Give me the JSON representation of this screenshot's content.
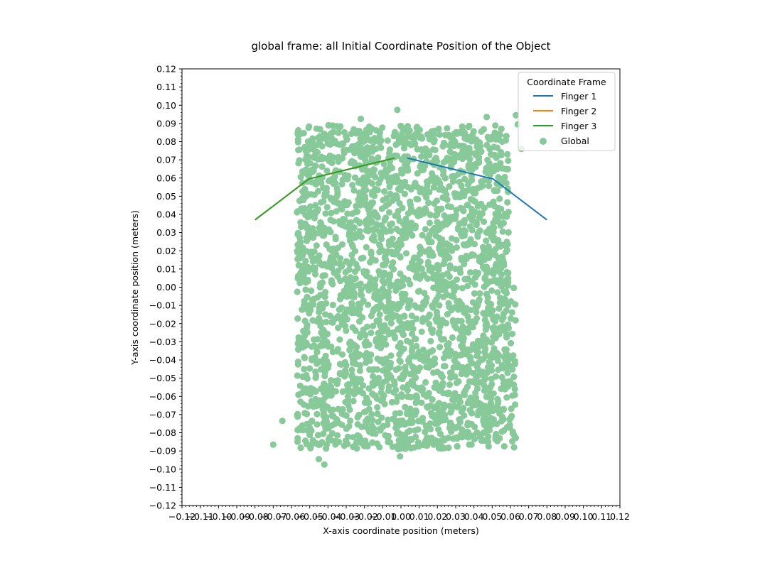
{
  "chart_data": {
    "type": "line+scatter",
    "title": "global frame: all Initial Coordinate Position of the Object",
    "xlabel": "X-axis coordinate position (meters)",
    "ylabel": "Y-axis coordinate position (meters)",
    "xlim": [
      -0.12,
      0.12
    ],
    "ylim": [
      -0.12,
      0.12
    ],
    "x_ticks": [
      -0.12,
      -0.11,
      -0.1,
      -0.09,
      -0.08,
      -0.07,
      -0.06,
      -0.05,
      -0.04,
      -0.03,
      -0.02,
      -0.01,
      0.0,
      0.01,
      0.02,
      0.03,
      0.04,
      0.05,
      0.06,
      0.07,
      0.08,
      0.09,
      0.1,
      0.11,
      0.12
    ],
    "x_tick_labels": [
      "−0.12",
      "−0.11",
      "−0.10",
      "−0.09",
      "−0.08",
      "−0.07",
      "−0.06",
      "−0.05",
      "−0.04",
      "−0.03",
      "−0.02",
      "−0.01",
      "0.00",
      "0.01",
      "0.02",
      "0.03",
      "0.04",
      "0.05",
      "0.06",
      "0.07",
      "0.08",
      "0.09",
      "0.10",
      "0.11",
      "0.12"
    ],
    "y_ticks": [
      -0.12,
      -0.11,
      -0.1,
      -0.09,
      -0.08,
      -0.07,
      -0.06,
      -0.05,
      -0.04,
      -0.03,
      -0.02,
      -0.01,
      0.0,
      0.01,
      0.02,
      0.03,
      0.04,
      0.05,
      0.06,
      0.07,
      0.08,
      0.09,
      0.1,
      0.11,
      0.12
    ],
    "y_tick_labels": [
      "−0.12",
      "−0.11",
      "−0.10",
      "−0.09",
      "−0.08",
      "−0.07",
      "−0.06",
      "−0.05",
      "−0.04",
      "−0.03",
      "−0.02",
      "−0.01",
      "0.00",
      "0.01",
      "0.02",
      "0.03",
      "0.04",
      "0.05",
      "0.06",
      "0.07",
      "0.08",
      "0.09",
      "0.10",
      "0.11",
      "0.12"
    ],
    "legend": {
      "title": "Coordinate Frame",
      "placement": "top-right",
      "entries": [
        {
          "label": "Finger 1",
          "color": "#1f77b4",
          "kind": "line"
        },
        {
          "label": "Finger 2",
          "color": "#ff7f0e",
          "kind": "line"
        },
        {
          "label": "Finger 3",
          "color": "#2ca02c",
          "kind": "line"
        },
        {
          "label": "Global",
          "color": "#88c999",
          "kind": "scatter"
        }
      ]
    },
    "series": [
      {
        "name": "Finger 1",
        "color": "#1f77b4",
        "x": [
          0.0035,
          0.0505,
          0.08
        ],
        "y": [
          0.071,
          0.0595,
          0.037
        ]
      },
      {
        "name": "Finger 2",
        "color": "#ff7f0e",
        "x": [
          -0.0035,
          -0.0505,
          -0.08
        ],
        "y": [
          0.071,
          0.0595,
          0.037
        ]
      },
      {
        "name": "Finger 3",
        "color": "#2ca02c",
        "x": [
          -0.0035,
          -0.0505,
          -0.08
        ],
        "y": [
          0.071,
          0.0595,
          0.037
        ]
      }
    ],
    "scatter": {
      "name": "Global",
      "color": "#88c999",
      "region": {
        "x": [
          -0.057,
          0.061
        ],
        "y": [
          -0.089,
          0.089
        ]
      },
      "bulk_x_right_upper": 0.059,
      "bulk_x_right_lower": 0.063,
      "outliers": [
        {
          "x": -0.002,
          "y": 0.0975
        },
        {
          "x": -0.022,
          "y": 0.0925
        },
        {
          "x": 0.047,
          "y": 0.0935
        },
        {
          "x": 0.063,
          "y": 0.0945
        },
        {
          "x": 0.064,
          "y": 0.0895
        },
        {
          "x": 0.066,
          "y": 0.076
        },
        {
          "x": -0.065,
          "y": -0.0735
        },
        {
          "x": -0.07,
          "y": -0.0865
        },
        {
          "x": -0.045,
          "y": -0.0945
        },
        {
          "x": -0.042,
          "y": -0.0975
        },
        {
          "x": -0.0005,
          "y": -0.093
        },
        {
          "x": 0.062,
          "y": -0.088
        }
      ]
    },
    "grid": false
  }
}
